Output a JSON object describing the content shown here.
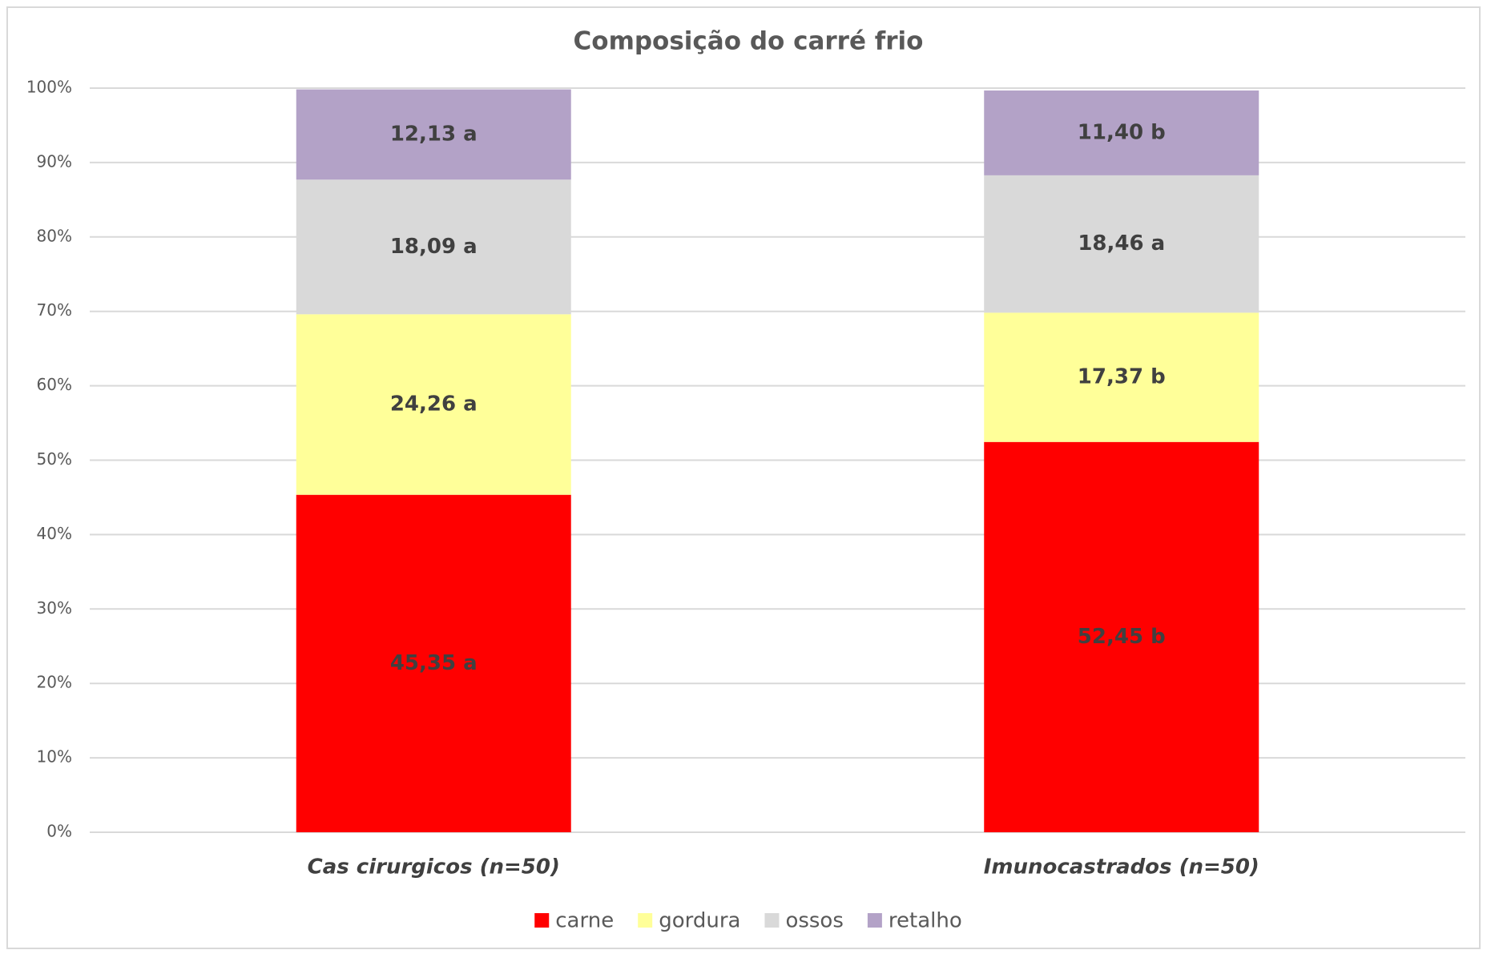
{
  "chart_data": {
    "type": "stacked_bar",
    "title": "Composição do carré frio",
    "categories": [
      "Cas cirurgicos (n=50)",
      "Imunocastrados (n=50)"
    ],
    "series": [
      {
        "name": "carne",
        "color": "#ff0000",
        "values": [
          45.35,
          52.45
        ],
        "value_labels": [
          "45,35 a",
          "52,45 b"
        ]
      },
      {
        "name": "gordura",
        "color": "#ffff99",
        "values": [
          24.26,
          17.37
        ],
        "value_labels": [
          "24,26 a",
          "17,37 b"
        ]
      },
      {
        "name": "ossos",
        "color": "#d9d9d9",
        "values": [
          18.09,
          18.46
        ],
        "value_labels": [
          "18,09 a",
          "18,46 a"
        ]
      },
      {
        "name": "retalho",
        "color": "#b3a2c7",
        "values": [
          12.13,
          11.4
        ],
        "value_labels": [
          "12,13 a",
          "11,40 b"
        ]
      }
    ],
    "ylim": [
      0,
      100
    ],
    "yticks": [
      {
        "value": 0,
        "label": "0%"
      },
      {
        "value": 10,
        "label": "10%"
      },
      {
        "value": 20,
        "label": "20%"
      },
      {
        "value": 30,
        "label": "30%"
      },
      {
        "value": 40,
        "label": "40%"
      },
      {
        "value": 50,
        "label": "50%"
      },
      {
        "value": 60,
        "label": "60%"
      },
      {
        "value": 70,
        "label": "70%"
      },
      {
        "value": 80,
        "label": "80%"
      },
      {
        "value": 90,
        "label": "90%"
      },
      {
        "value": 100,
        "label": "100%"
      }
    ],
    "grid": true,
    "legend": "bottom"
  }
}
